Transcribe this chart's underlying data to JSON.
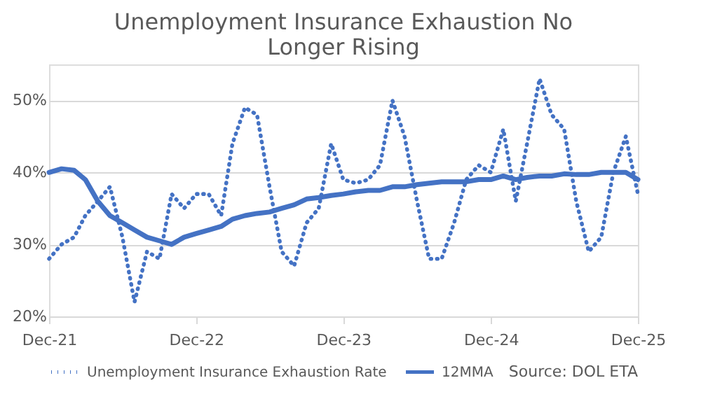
{
  "chart_data": {
    "type": "line",
    "title": "Unemployment Insurance Exhaustion No Longer Rising",
    "x": [
      "2021-12",
      "2022-01",
      "2022-02",
      "2022-03",
      "2022-04",
      "2022-05",
      "2022-06",
      "2022-07",
      "2022-08",
      "2022-09",
      "2022-10",
      "2022-11",
      "2022-12",
      "2023-01",
      "2023-02",
      "2023-03",
      "2023-04",
      "2023-05",
      "2023-06",
      "2023-07",
      "2023-08",
      "2023-09",
      "2023-10",
      "2023-11",
      "2023-12",
      "2024-01",
      "2024-02",
      "2024-03",
      "2024-04",
      "2024-05",
      "2024-06",
      "2024-07",
      "2024-08",
      "2024-09",
      "2024-10",
      "2024-11",
      "2024-12",
      "2025-01",
      "2025-02",
      "2025-03",
      "2025-04",
      "2025-05",
      "2025-06",
      "2025-07",
      "2025-08",
      "2025-09",
      "2025-10",
      "2025-11",
      "2025-12"
    ],
    "series": [
      {
        "name": "Unemployment Insurance Exhaustion Rate",
        "color": "#4472c4",
        "line_style": "dotted",
        "values": [
          28,
          30,
          31,
          34,
          36,
          38,
          31,
          22,
          29,
          28,
          37,
          35,
          37,
          37,
          34,
          44,
          49,
          48,
          38,
          29,
          27,
          33,
          35,
          44,
          39,
          38.5,
          39,
          41,
          50,
          45,
          36,
          28,
          28,
          33,
          39,
          41,
          40,
          46,
          36,
          44,
          53,
          48,
          46,
          36,
          29,
          31,
          40,
          45,
          37
        ]
      },
      {
        "name": "12MMA",
        "color": "#4472c4",
        "line_style": "solid",
        "values": [
          40,
          40.5,
          40.3,
          39,
          36,
          34,
          33,
          32,
          31,
          30.5,
          30,
          31,
          31.5,
          32,
          32.5,
          33.5,
          34,
          34.3,
          34.5,
          35,
          35.5,
          36.3,
          36.5,
          36.8,
          37,
          37.3,
          37.5,
          37.5,
          38,
          38,
          38.3,
          38.5,
          38.7,
          38.7,
          38.7,
          39,
          39,
          39.5,
          39,
          39.3,
          39.5,
          39.5,
          39.8,
          39.7,
          39.7,
          40,
          40,
          40,
          39
        ]
      }
    ],
    "xlim": [
      "2021-12",
      "2025-12"
    ],
    "xticks": [
      {
        "value": "2021-12",
        "label": "Dec-21"
      },
      {
        "value": "2022-12",
        "label": "Dec-22"
      },
      {
        "value": "2023-12",
        "label": "Dec-23"
      },
      {
        "value": "2024-12",
        "label": "Dec-24"
      },
      {
        "value": "2025-12",
        "label": "Dec-25"
      }
    ],
    "ylim": [
      20,
      55
    ],
    "yticks": [
      {
        "value": 20,
        "label": "20%"
      },
      {
        "value": 30,
        "label": "30%"
      },
      {
        "value": 40,
        "label": "40%"
      },
      {
        "value": 50,
        "label": "50%"
      }
    ],
    "grid": "y",
    "legend": "bottom",
    "annotations": [
      "Source: DOL ETA"
    ]
  }
}
